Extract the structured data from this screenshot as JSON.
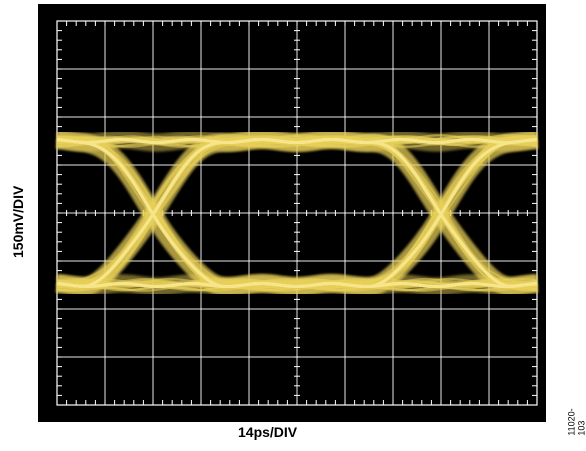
{
  "chart_data": {
    "type": "line",
    "title": "",
    "xlabel": "14ps/DIV",
    "ylabel": "150mV/DIV",
    "figure_id": "11020-103",
    "x_divisions": 10,
    "y_divisions": 8,
    "unit_interval_divisions": 6,
    "first_crossing_division": 2.0,
    "upper_level_division": 2.5,
    "lower_level_division": 5.5,
    "grid": true,
    "background_color": "#000000",
    "grid_color": "#ffffff",
    "trace_color": "#e8cf5a"
  }
}
